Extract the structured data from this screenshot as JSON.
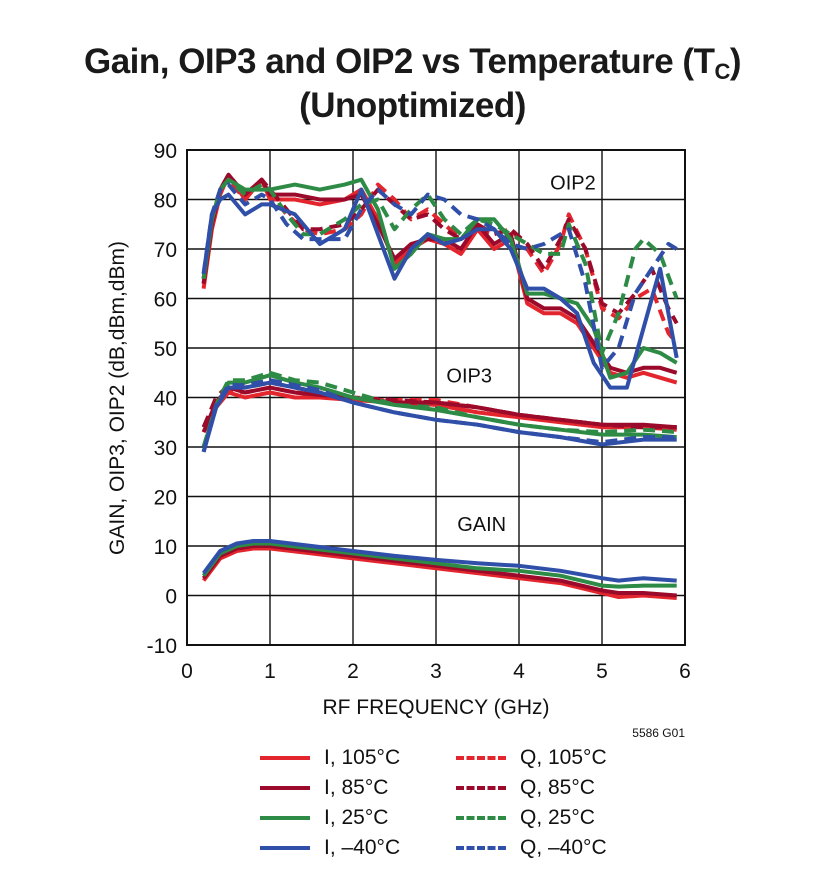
{
  "title_line1": "Gain, OIP3 and OIP2 vs Temperature (T",
  "title_sub": "C",
  "title_close": ")",
  "title_line2": "(Unoptimized)",
  "figure_id": "5586 G01",
  "colors": {
    "I_105": "#e3262d",
    "I_85": "#9b0a2a",
    "I_25": "#2e8b45",
    "I_m40": "#2f4fa8",
    "Q_105": "#e3262d",
    "Q_85": "#9b0a2a",
    "Q_25": "#2e8b45",
    "Q_m40": "#2f4fa8"
  },
  "legend": [
    {
      "key": "I_105",
      "label": "I, 105°C",
      "dash": false
    },
    {
      "key": "Q_105",
      "label": "Q, 105°C",
      "dash": true
    },
    {
      "key": "I_85",
      "label": "I, 85°C",
      "dash": false
    },
    {
      "key": "Q_85",
      "label": "Q, 85°C",
      "dash": true
    },
    {
      "key": "I_25",
      "label": "I, 25°C",
      "dash": false
    },
    {
      "key": "Q_25",
      "label": "Q, 25°C",
      "dash": true
    },
    {
      "key": "I_m40",
      "label": "I, –40°C",
      "dash": false
    },
    {
      "key": "Q_m40",
      "label": "Q, –40°C",
      "dash": true
    }
  ],
  "chart_data": {
    "type": "line",
    "title": "Gain, OIP3 and OIP2 vs Temperature (TC) (Unoptimized)",
    "xlabel": "RF FREQUENCY (GHz)",
    "ylabel": "GAIN, OIP3, OIP2 (dB,dBm,dBm)",
    "xlim": [
      0,
      6
    ],
    "ylim": [
      -10,
      90
    ],
    "xticks": [
      0,
      1,
      2,
      3,
      4,
      5,
      6
    ],
    "yticks": [
      -10,
      0,
      10,
      20,
      30,
      40,
      50,
      60,
      70,
      80,
      90
    ],
    "grid": true,
    "annotations": [
      {
        "text": "OIP2",
        "x": 4.65,
        "y": 82
      },
      {
        "text": "OIP3",
        "x": 3.4,
        "y": 43
      },
      {
        "text": "GAIN",
        "x": 3.55,
        "y": 13
      }
    ],
    "series": [
      {
        "name": "Gain I, 105°C",
        "key": "I_105",
        "dash": false,
        "x": [
          0.2,
          0.4,
          0.6,
          0.8,
          1.0,
          1.5,
          2.0,
          2.5,
          3.0,
          3.5,
          4.0,
          4.5,
          5.0,
          5.2,
          5.5,
          5.9
        ],
        "y": [
          3,
          7.5,
          9,
          9.5,
          9.5,
          8.5,
          7.5,
          6.5,
          5.5,
          4.5,
          3.5,
          2.5,
          0.5,
          -0.3,
          0,
          -0.5
        ]
      },
      {
        "name": "Gain I, 85°C",
        "key": "I_85",
        "dash": false,
        "x": [
          0.2,
          0.4,
          0.6,
          0.8,
          1.0,
          1.5,
          2.0,
          2.5,
          3.0,
          3.5,
          4.0,
          4.5,
          5.0,
          5.2,
          5.5,
          5.9
        ],
        "y": [
          3.5,
          8,
          9.5,
          10,
          10,
          9,
          8,
          7,
          6,
          5,
          4,
          3,
          1,
          0.5,
          0.5,
          0
        ]
      },
      {
        "name": "Gain I, 25°C",
        "key": "I_25",
        "dash": false,
        "x": [
          0.2,
          0.4,
          0.6,
          0.8,
          1.0,
          1.5,
          2.0,
          2.5,
          3.0,
          3.5,
          4.0,
          4.5,
          5.0,
          5.2,
          5.5,
          5.9
        ],
        "y": [
          4,
          8.5,
          10,
          10.5,
          10.5,
          9.5,
          8.5,
          7.5,
          6.5,
          5.5,
          5,
          4,
          2,
          1.8,
          2,
          2
        ]
      },
      {
        "name": "Gain I, –40°C",
        "key": "I_m40",
        "dash": false,
        "x": [
          0.2,
          0.4,
          0.6,
          0.8,
          1.0,
          1.5,
          2.0,
          2.5,
          3.0,
          3.5,
          4.0,
          4.5,
          5.0,
          5.2,
          5.5,
          5.9
        ],
        "y": [
          4.5,
          9,
          10.5,
          11,
          11,
          10,
          9,
          8,
          7.2,
          6.5,
          6,
          5,
          3.5,
          3,
          3.5,
          3
        ]
      },
      {
        "name": "OIP3 I, 105°C",
        "key": "I_105",
        "dash": false,
        "x": [
          0.2,
          0.35,
          0.5,
          0.7,
          1.0,
          1.3,
          1.6,
          2.0,
          2.5,
          3.0,
          3.5,
          4.0,
          4.5,
          5.0,
          5.5,
          5.9
        ],
        "y": [
          33,
          38,
          41,
          40,
          41,
          40,
          40,
          39.5,
          39,
          38.5,
          37,
          36,
          35,
          34,
          34,
          33.5
        ]
      },
      {
        "name": "OIP3 Q, 105°C",
        "key": "Q_105",
        "dash": true,
        "x": [
          0.2,
          0.35,
          0.5,
          0.7,
          1.0,
          1.3,
          1.6,
          2.0,
          2.5,
          3.0,
          3.5,
          4.0,
          4.5,
          5.0,
          5.5,
          5.9
        ],
        "y": [
          34,
          39,
          41.5,
          41,
          42,
          41,
          40.5,
          39.5,
          39.5,
          39.5,
          38,
          36.5,
          35.5,
          34.5,
          34,
          34
        ]
      },
      {
        "name": "OIP3 I, 85°C",
        "key": "I_85",
        "dash": false,
        "x": [
          0.2,
          0.35,
          0.5,
          0.7,
          1.0,
          1.3,
          1.6,
          2.0,
          2.5,
          3.0,
          3.5,
          4.0,
          4.5,
          5.0,
          5.5,
          5.9
        ],
        "y": [
          33,
          39,
          42,
          41,
          42,
          41,
          40.5,
          40,
          39,
          39,
          38,
          36.5,
          35.5,
          34.5,
          34.5,
          34
        ]
      },
      {
        "name": "OIP3 Q, 85°C",
        "key": "Q_85",
        "dash": true,
        "x": [
          0.2,
          0.35,
          0.5,
          0.7,
          1.0,
          1.3,
          1.6,
          2.0,
          2.5,
          3.0,
          3.5,
          4.0,
          4.5,
          5.0,
          5.5,
          5.9
        ],
        "y": [
          34,
          40,
          42.5,
          42,
          43,
          42,
          41,
          40,
          39.5,
          39,
          38,
          36.5,
          35.5,
          34.5,
          34,
          34
        ]
      },
      {
        "name": "OIP3 I, 25°C",
        "key": "I_25",
        "dash": false,
        "x": [
          0.2,
          0.35,
          0.5,
          0.7,
          1.0,
          1.3,
          1.6,
          2.0,
          2.5,
          3.0,
          3.5,
          4.0,
          4.5,
          5.0,
          5.5,
          5.9
        ],
        "y": [
          30,
          38,
          43,
          43,
          44.5,
          43,
          42,
          40,
          38.5,
          37.5,
          36,
          34.5,
          33.5,
          32.5,
          32.5,
          32
        ]
      },
      {
        "name": "OIP3 Q, 25°C",
        "key": "Q_25",
        "dash": true,
        "x": [
          0.2,
          0.35,
          0.5,
          0.7,
          1.0,
          1.3,
          1.6,
          2.0,
          2.5,
          3.0,
          3.5,
          4.0,
          4.5,
          5.0,
          5.5,
          5.9
        ],
        "y": [
          30,
          38.5,
          43.5,
          43.5,
          45,
          43.5,
          43,
          41,
          38.5,
          38,
          36,
          34.5,
          33.5,
          33,
          33.5,
          33
        ]
      },
      {
        "name": "OIP3 I, –40°C",
        "key": "I_m40",
        "dash": false,
        "x": [
          0.2,
          0.35,
          0.5,
          0.7,
          1.0,
          1.3,
          1.6,
          2.0,
          2.5,
          3.0,
          3.5,
          4.0,
          4.5,
          5.0,
          5.5,
          5.9
        ],
        "y": [
          29,
          38,
          42,
          42,
          43,
          42,
          41,
          39,
          37,
          35.5,
          34.5,
          33,
          32,
          30.5,
          31.5,
          31.5
        ]
      },
      {
        "name": "OIP3 Q, –40°C",
        "key": "Q_m40",
        "dash": true,
        "x": [
          0.2,
          0.35,
          0.5,
          0.7,
          1.0,
          1.3,
          1.6,
          2.0,
          2.5,
          3.0,
          3.5,
          4.0,
          4.5,
          5.0,
          5.5,
          5.9
        ],
        "y": [
          29,
          38.5,
          42.5,
          42.5,
          43.5,
          42.5,
          41.5,
          39,
          37,
          35.5,
          34.5,
          33,
          32,
          31,
          32,
          32
        ]
      },
      {
        "name": "OIP2 I, 105°C",
        "key": "I_105",
        "dash": false,
        "x": [
          0.2,
          0.3,
          0.4,
          0.5,
          0.7,
          0.9,
          1.0,
          1.3,
          1.6,
          1.9,
          2.1,
          2.3,
          2.5,
          2.7,
          2.9,
          3.1,
          3.3,
          3.5,
          3.7,
          3.9,
          4.1,
          4.3,
          4.5,
          4.7,
          4.9,
          5.1,
          5.3,
          5.5,
          5.7,
          5.9
        ],
        "y": [
          62,
          74,
          81,
          85,
          80,
          84,
          80,
          80,
          79,
          80,
          82,
          76,
          67,
          70,
          72,
          71,
          69,
          74,
          70,
          72,
          59,
          57,
          57,
          55,
          50,
          45,
          44,
          45,
          44,
          43
        ]
      },
      {
        "name": "OIP2 Q, 105°C",
        "key": "Q_105",
        "dash": true,
        "x": [
          0.2,
          0.3,
          0.4,
          0.5,
          0.7,
          0.9,
          1.0,
          1.2,
          1.4,
          1.6,
          1.9,
          2.1,
          2.3,
          2.5,
          2.7,
          2.9,
          3.1,
          3.3,
          3.5,
          3.7,
          3.9,
          4.1,
          4.3,
          4.5,
          4.6,
          4.8,
          5.0,
          5.2,
          5.4,
          5.6,
          5.8,
          5.9
        ],
        "y": [
          63,
          75,
          82,
          84,
          80,
          84,
          81,
          77,
          74,
          73,
          74,
          77,
          83,
          80,
          76,
          78,
          75,
          72,
          74,
          73,
          74,
          70,
          65,
          71,
          77,
          70,
          58,
          56,
          60,
          62,
          53,
          51
        ]
      },
      {
        "name": "OIP2 I, 85°C",
        "key": "I_85",
        "dash": false,
        "x": [
          0.2,
          0.3,
          0.4,
          0.5,
          0.7,
          0.9,
          1.0,
          1.3,
          1.6,
          1.9,
          2.1,
          2.3,
          2.5,
          2.7,
          2.9,
          3.1,
          3.3,
          3.5,
          3.7,
          3.9,
          4.1,
          4.3,
          4.5,
          4.7,
          4.9,
          5.1,
          5.3,
          5.5,
          5.7,
          5.9
        ],
        "y": [
          63,
          75,
          82,
          85,
          81,
          84,
          81,
          81,
          80,
          80,
          81,
          75,
          68,
          71,
          72,
          72,
          70,
          75,
          71,
          73,
          60,
          58,
          58,
          56,
          51,
          46,
          45,
          46,
          46,
          45
        ]
      },
      {
        "name": "OIP2 Q, 85°C",
        "key": "Q_85",
        "dash": true,
        "x": [
          0.2,
          0.3,
          0.4,
          0.5,
          0.7,
          0.9,
          1.0,
          1.2,
          1.4,
          1.6,
          1.9,
          2.1,
          2.3,
          2.5,
          2.7,
          2.9,
          3.1,
          3.3,
          3.5,
          3.7,
          3.9,
          4.1,
          4.3,
          4.5,
          4.6,
          4.8,
          5.0,
          5.2,
          5.4,
          5.6,
          5.8,
          5.9
        ],
        "y": [
          64,
          76,
          82,
          85,
          81,
          84,
          82,
          78,
          74,
          74,
          75,
          78,
          82,
          79,
          76,
          77,
          74,
          72,
          75,
          73,
          74,
          71,
          66,
          72,
          76,
          70,
          59,
          57,
          61,
          66,
          58,
          55
        ]
      },
      {
        "name": "OIP2 I, 25°C",
        "key": "I_25",
        "dash": false,
        "x": [
          0.2,
          0.3,
          0.4,
          0.5,
          0.7,
          0.9,
          1.0,
          1.3,
          1.6,
          1.9,
          2.1,
          2.3,
          2.5,
          2.7,
          2.9,
          3.1,
          3.3,
          3.5,
          3.7,
          3.9,
          4.1,
          4.3,
          4.5,
          4.7,
          4.9,
          5.1,
          5.3,
          5.5,
          5.7,
          5.9
        ],
        "y": [
          64,
          76,
          82,
          84,
          82,
          82,
          82,
          83,
          82,
          83,
          84,
          78,
          66,
          69,
          73,
          72,
          72,
          76,
          76,
          72,
          61,
          61,
          60,
          59,
          54,
          44,
          45,
          50,
          49,
          47
        ]
      },
      {
        "name": "OIP2 Q, 25°C",
        "key": "Q_25",
        "dash": true,
        "x": [
          0.2,
          0.3,
          0.4,
          0.5,
          0.7,
          0.9,
          1.0,
          1.2,
          1.4,
          1.6,
          1.9,
          2.1,
          2.3,
          2.5,
          2.7,
          2.9,
          3.1,
          3.3,
          3.5,
          3.7,
          3.9,
          4.1,
          4.3,
          4.5,
          4.6,
          4.8,
          5.0,
          5.2,
          5.4,
          5.5,
          5.7,
          5.9
        ],
        "y": [
          64,
          76,
          82,
          84,
          81,
          83,
          82,
          77,
          73,
          73,
          76,
          79,
          80,
          74,
          78,
          81,
          76,
          73,
          76,
          75,
          73,
          71,
          69,
          69,
          75,
          67,
          49,
          57,
          70,
          72,
          69,
          60
        ]
      },
      {
        "name": "OIP2 I, –40°C",
        "key": "I_m40",
        "dash": false,
        "x": [
          0.2,
          0.3,
          0.4,
          0.5,
          0.7,
          0.9,
          1.0,
          1.3,
          1.6,
          1.9,
          2.1,
          2.3,
          2.5,
          2.7,
          2.9,
          3.1,
          3.3,
          3.5,
          3.7,
          3.9,
          4.1,
          4.3,
          4.5,
          4.7,
          4.9,
          5.1,
          5.3,
          5.5,
          5.7,
          5.9
        ],
        "y": [
          65,
          77,
          80,
          81,
          77,
          79,
          79,
          77,
          71,
          74,
          82,
          73,
          64,
          70,
          73,
          71,
          72,
          74,
          74,
          70,
          62,
          62,
          60,
          57,
          47,
          42,
          42,
          54,
          66,
          48
        ]
      },
      {
        "name": "OIP2 Q, –40°C",
        "key": "Q_m40",
        "dash": true,
        "x": [
          0.2,
          0.3,
          0.4,
          0.5,
          0.7,
          0.9,
          1.0,
          1.2,
          1.4,
          1.6,
          1.9,
          2.1,
          2.3,
          2.5,
          2.7,
          2.9,
          3.1,
          3.3,
          3.5,
          3.7,
          3.9,
          4.1,
          4.3,
          4.5,
          4.6,
          4.8,
          5.0,
          5.2,
          5.4,
          5.6,
          5.8,
          5.9
        ],
        "y": [
          65,
          77,
          82,
          83,
          79,
          81,
          80,
          75,
          72,
          72,
          72,
          78,
          82,
          79,
          77,
          81,
          80,
          77,
          76,
          74,
          71,
          70,
          71,
          73,
          74,
          63,
          46,
          50,
          61,
          66,
          71,
          70
        ]
      }
    ]
  }
}
